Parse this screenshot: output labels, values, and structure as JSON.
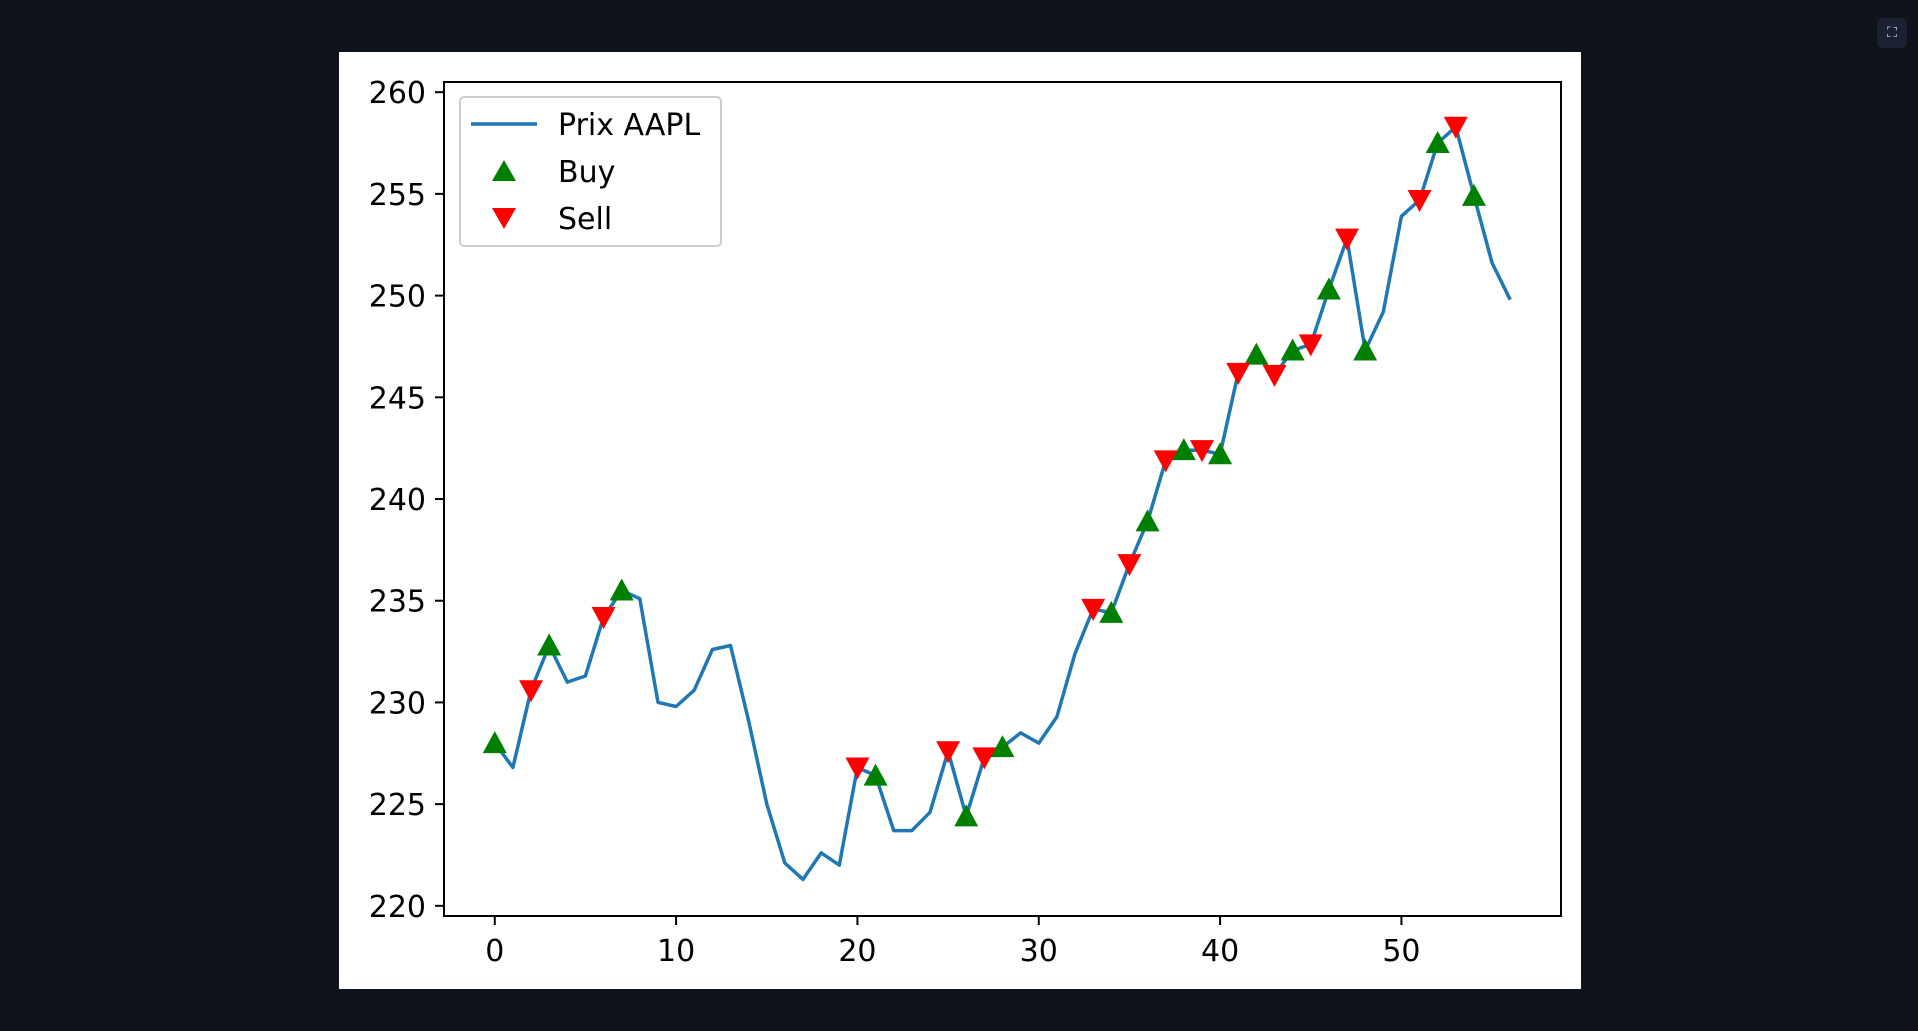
{
  "viewer": {
    "fullscreen_icon": "expand-icon",
    "fullscreen_glyph": "⛶"
  },
  "chart_data": {
    "type": "line",
    "title": "",
    "xlabel": "",
    "ylabel": "",
    "xlim": [
      -2.8,
      58.8
    ],
    "ylim": [
      219.5,
      260.5
    ],
    "xticks": [
      0,
      10,
      20,
      30,
      40,
      50
    ],
    "yticks": [
      220,
      225,
      230,
      235,
      240,
      245,
      250,
      255,
      260
    ],
    "grid": false,
    "legend_position": "top-left",
    "series": [
      {
        "name": "Prix AAPL",
        "kind": "line",
        "color": "#1f77b4",
        "x": [
          0,
          1,
          2,
          3,
          4,
          5,
          6,
          7,
          8,
          9,
          10,
          11,
          12,
          13,
          14,
          15,
          16,
          17,
          18,
          19,
          20,
          21,
          22,
          23,
          24,
          25,
          26,
          27,
          28,
          29,
          30,
          31,
          32,
          33,
          34,
          35,
          36,
          37,
          38,
          39,
          40,
          41,
          42,
          43,
          44,
          45,
          46,
          47,
          48,
          49,
          50,
          51,
          52,
          53,
          54,
          55,
          56
        ],
        "y": [
          228.0,
          226.8,
          230.6,
          232.8,
          231.0,
          231.3,
          234.2,
          235.5,
          235.1,
          230.0,
          229.8,
          230.6,
          232.6,
          232.8,
          229.1,
          225.0,
          222.1,
          221.3,
          222.6,
          222.0,
          226.8,
          226.4,
          223.7,
          223.7,
          224.6,
          227.6,
          224.4,
          227.3,
          227.8,
          228.5,
          228.0,
          229.3,
          232.4,
          234.6,
          234.4,
          236.8,
          238.9,
          241.9,
          242.4,
          242.4,
          242.2,
          246.2,
          247.1,
          246.1,
          247.3,
          247.6,
          250.3,
          252.8,
          247.3,
          249.2,
          253.9,
          254.7,
          257.5,
          258.3,
          254.9,
          251.6,
          249.8
        ]
      },
      {
        "name": "Buy",
        "kind": "markers",
        "marker": "triangle-up",
        "color": "#008000",
        "x": [
          0,
          3,
          7,
          21,
          26,
          28,
          34,
          36,
          38,
          40,
          42,
          44,
          46,
          48,
          52,
          54
        ],
        "y": [
          228.0,
          232.8,
          235.5,
          226.4,
          224.4,
          227.8,
          234.4,
          238.9,
          242.4,
          242.2,
          247.1,
          247.3,
          250.3,
          247.3,
          257.5,
          254.9
        ]
      },
      {
        "name": "Sell",
        "kind": "markers",
        "marker": "triangle-down",
        "color": "#ff0000",
        "x": [
          2,
          6,
          20,
          25,
          27,
          33,
          35,
          37,
          39,
          41,
          43,
          45,
          47,
          51,
          53
        ],
        "y": [
          230.6,
          234.2,
          226.8,
          227.6,
          227.3,
          234.6,
          236.8,
          241.9,
          242.4,
          246.2,
          246.1,
          247.6,
          252.8,
          254.7,
          258.3
        ]
      }
    ]
  }
}
